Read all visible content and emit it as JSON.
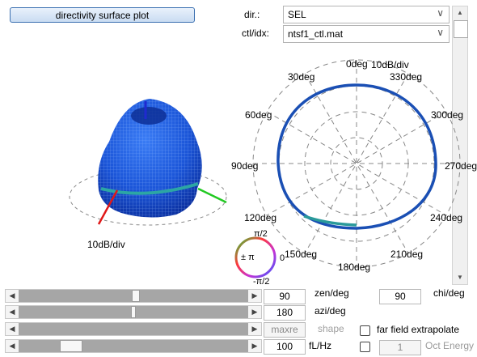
{
  "header": {
    "plot_button": "directivity surface plot"
  },
  "controls": {
    "dir_label": "dir.:",
    "dir_value": "SEL",
    "ctl_label": "ctl/idx:",
    "ctl_value": "ntsf1_ctl.mat"
  },
  "surface_plot": {
    "scale_label": "10dB/div"
  },
  "polar_plot": {
    "scale_label": "10dB/div",
    "angle_labels": [
      "0deg",
      "30deg",
      "60deg",
      "90deg",
      "120deg",
      "150deg",
      "180deg",
      "210deg",
      "240deg",
      "270deg",
      "300deg",
      "330deg"
    ]
  },
  "phase_legend": {
    "top": "π/2",
    "left": "± π",
    "right": "0",
    "bottom": "-π/2"
  },
  "sliders": {
    "zen": {
      "value": "90",
      "unit": "zen/deg"
    },
    "azi": {
      "value": "180",
      "unit": "azi/deg"
    },
    "shape": {
      "value": "maxre",
      "unit": "shape"
    },
    "freq": {
      "value": "100",
      "unit": "fL/Hz"
    }
  },
  "chi": {
    "value": "90",
    "unit": "chi/deg"
  },
  "options": {
    "far_field": "far field extrapolate",
    "oct_value": "1",
    "oct_label": "Oct Energy"
  }
}
